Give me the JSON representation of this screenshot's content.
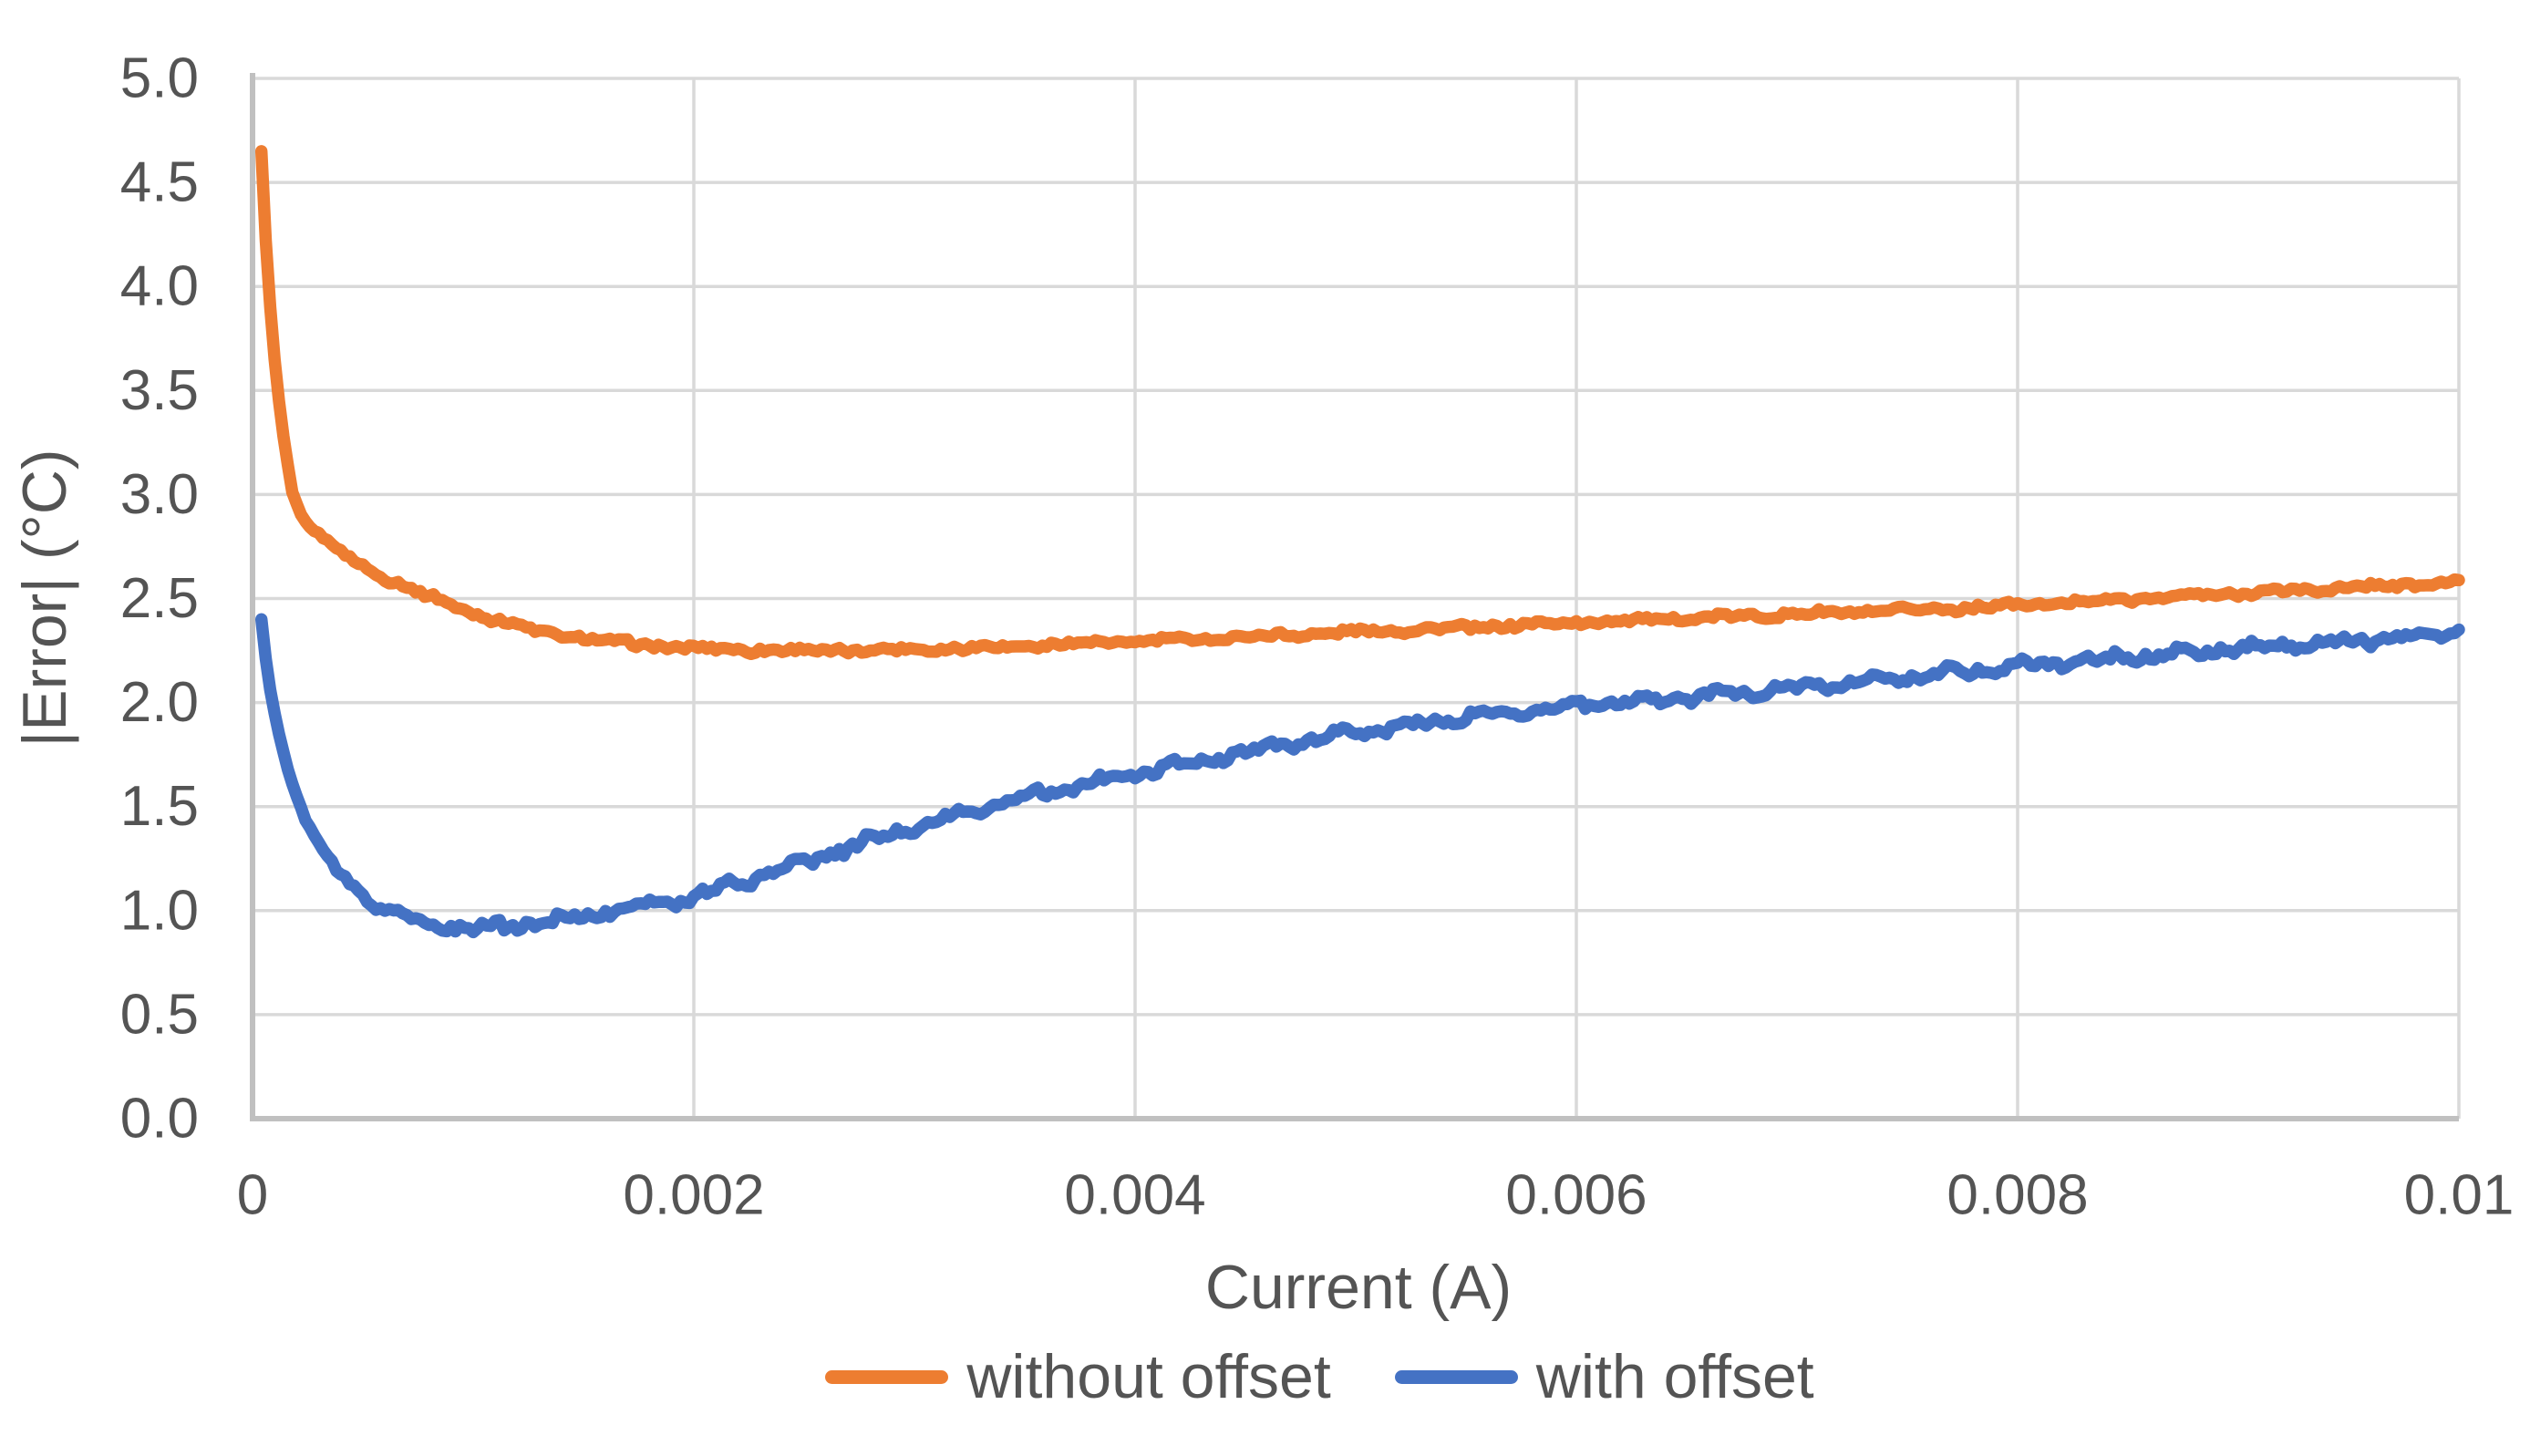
{
  "chart_data": {
    "type": "line",
    "title": "",
    "xlabel": "Current (A)",
    "ylabel": "|Error| (°C)",
    "xlim": [
      0,
      0.01
    ],
    "ylim": [
      0.0,
      5.0
    ],
    "grid": true,
    "legend_position": "bottom",
    "x_ticks": [
      {
        "value": 0,
        "label": "0"
      },
      {
        "value": 0.002,
        "label": "0.002"
      },
      {
        "value": 0.004,
        "label": "0.004"
      },
      {
        "value": 0.006,
        "label": "0.006"
      },
      {
        "value": 0.008,
        "label": "0.008"
      },
      {
        "value": 0.01,
        "label": "0.01"
      }
    ],
    "y_ticks": [
      {
        "value": 0.0,
        "label": "0.0"
      },
      {
        "value": 0.5,
        "label": "0.5"
      },
      {
        "value": 1.0,
        "label": "1.0"
      },
      {
        "value": 1.5,
        "label": "1.5"
      },
      {
        "value": 2.0,
        "label": "2.0"
      },
      {
        "value": 2.5,
        "label": "2.5"
      },
      {
        "value": 3.0,
        "label": "3.0"
      },
      {
        "value": 3.5,
        "label": "3.5"
      },
      {
        "value": 4.0,
        "label": "4.0"
      },
      {
        "value": 4.5,
        "label": "4.5"
      },
      {
        "value": 5.0,
        "label": "5.0"
      }
    ],
    "series": [
      {
        "name": "without offset",
        "color": "#ED7D31",
        "noise_amp": 0.01,
        "x_start": 4e-05,
        "x_end": 0.01,
        "n_points": 499,
        "anchors": [
          [
            4e-05,
            4.65
          ],
          [
            5e-05,
            4.42
          ],
          [
            6e-05,
            4.22
          ],
          [
            7e-05,
            4.05
          ],
          [
            8e-05,
            3.9
          ],
          [
            9e-05,
            3.77
          ],
          [
            0.0001,
            3.65
          ],
          [
            0.00012,
            3.45
          ],
          [
            0.00014,
            3.28
          ],
          [
            0.00016,
            3.14
          ],
          [
            0.00018,
            3.01
          ],
          [
            0.0002,
            2.955
          ],
          [
            0.00022,
            2.9
          ],
          [
            0.00025,
            2.855
          ],
          [
            0.0003,
            2.81
          ],
          [
            0.00035,
            2.765
          ],
          [
            0.0004,
            2.725
          ],
          [
            0.00045,
            2.69
          ],
          [
            0.0005,
            2.655
          ],
          [
            0.00055,
            2.625
          ],
          [
            0.0006,
            2.6
          ],
          [
            0.00065,
            2.58
          ],
          [
            0.0007,
            2.555
          ],
          [
            0.00075,
            2.53
          ],
          [
            0.0008,
            2.51
          ],
          [
            0.00085,
            2.49
          ],
          [
            0.0009,
            2.47
          ],
          [
            0.001,
            2.43
          ],
          [
            0.0011,
            2.4
          ],
          [
            0.0012,
            2.37
          ],
          [
            0.0013,
            2.34
          ],
          [
            0.0014,
            2.325
          ],
          [
            0.0015,
            2.31
          ],
          [
            0.0016,
            2.295
          ],
          [
            0.0018,
            2.275
          ],
          [
            0.002,
            2.262
          ],
          [
            0.0022,
            2.255
          ],
          [
            0.0025,
            2.25
          ],
          [
            0.0028,
            2.252
          ],
          [
            0.003,
            2.256
          ],
          [
            0.0033,
            2.265
          ],
          [
            0.0036,
            2.277
          ],
          [
            0.004,
            2.295
          ],
          [
            0.0045,
            2.315
          ],
          [
            0.005,
            2.34
          ],
          [
            0.0055,
            2.36
          ],
          [
            0.006,
            2.385
          ],
          [
            0.0065,
            2.405
          ],
          [
            0.007,
            2.425
          ],
          [
            0.0075,
            2.443
          ],
          [
            0.008,
            2.468
          ],
          [
            0.0085,
            2.497
          ],
          [
            0.009,
            2.525
          ],
          [
            0.0095,
            2.552
          ],
          [
            0.01,
            2.578
          ]
        ]
      },
      {
        "name": "with offset",
        "color": "#4472C4",
        "noise_amp": 0.016,
        "x_start": 4e-05,
        "x_end": 0.01,
        "n_points": 499,
        "anchors": [
          [
            4e-05,
            2.4
          ],
          [
            5e-05,
            2.3
          ],
          [
            6e-05,
            2.21
          ],
          [
            7e-05,
            2.13
          ],
          [
            8e-05,
            2.06
          ],
          [
            9e-05,
            2.0
          ],
          [
            0.0001,
            1.95
          ],
          [
            0.00012,
            1.85
          ],
          [
            0.00014,
            1.76
          ],
          [
            0.00016,
            1.68
          ],
          [
            0.00018,
            1.61
          ],
          [
            0.0002,
            1.55
          ],
          [
            0.00023,
            1.47
          ],
          [
            0.00026,
            1.4
          ],
          [
            0.0003,
            1.32
          ],
          [
            0.00035,
            1.24
          ],
          [
            0.0004,
            1.17
          ],
          [
            0.00045,
            1.12
          ],
          [
            0.0005,
            1.075
          ],
          [
            0.00055,
            1.04
          ],
          [
            0.0006,
            1.01
          ],
          [
            0.0007,
            0.965
          ],
          [
            0.0008,
            0.935
          ],
          [
            0.0009,
            0.922
          ],
          [
            0.001,
            0.918
          ],
          [
            0.0011,
            0.922
          ],
          [
            0.0012,
            0.932
          ],
          [
            0.0013,
            0.945
          ],
          [
            0.0014,
            0.958
          ],
          [
            0.0015,
            0.975
          ],
          [
            0.0016,
            0.995
          ],
          [
            0.0018,
            1.03
          ],
          [
            0.002,
            1.07
          ],
          [
            0.0022,
            1.135
          ],
          [
            0.0025,
            1.235
          ],
          [
            0.0028,
            1.335
          ],
          [
            0.003,
            1.4
          ],
          [
            0.0033,
            1.49
          ],
          [
            0.0036,
            1.565
          ],
          [
            0.004,
            1.655
          ],
          [
            0.0043,
            1.72
          ],
          [
            0.0046,
            1.785
          ],
          [
            0.005,
            1.855
          ],
          [
            0.0053,
            1.9
          ],
          [
            0.0056,
            1.94
          ],
          [
            0.006,
            1.985
          ],
          [
            0.0063,
            2.01
          ],
          [
            0.0066,
            2.035
          ],
          [
            0.007,
            2.07
          ],
          [
            0.0073,
            2.1
          ],
          [
            0.0076,
            2.135
          ],
          [
            0.008,
            2.175
          ],
          [
            0.0083,
            2.2
          ],
          [
            0.0086,
            2.225
          ],
          [
            0.009,
            2.26
          ],
          [
            0.0093,
            2.28
          ],
          [
            0.0096,
            2.305
          ],
          [
            0.0099,
            2.33
          ],
          [
            0.01,
            2.35
          ]
        ]
      }
    ]
  },
  "styles": {
    "background": "#FFFFFF",
    "grid_color": "#D9D9D9",
    "axis_color": "#C0C0C0",
    "text_color": "#545454",
    "series_orange": "#ED7D31",
    "series_blue": "#4472C4"
  }
}
